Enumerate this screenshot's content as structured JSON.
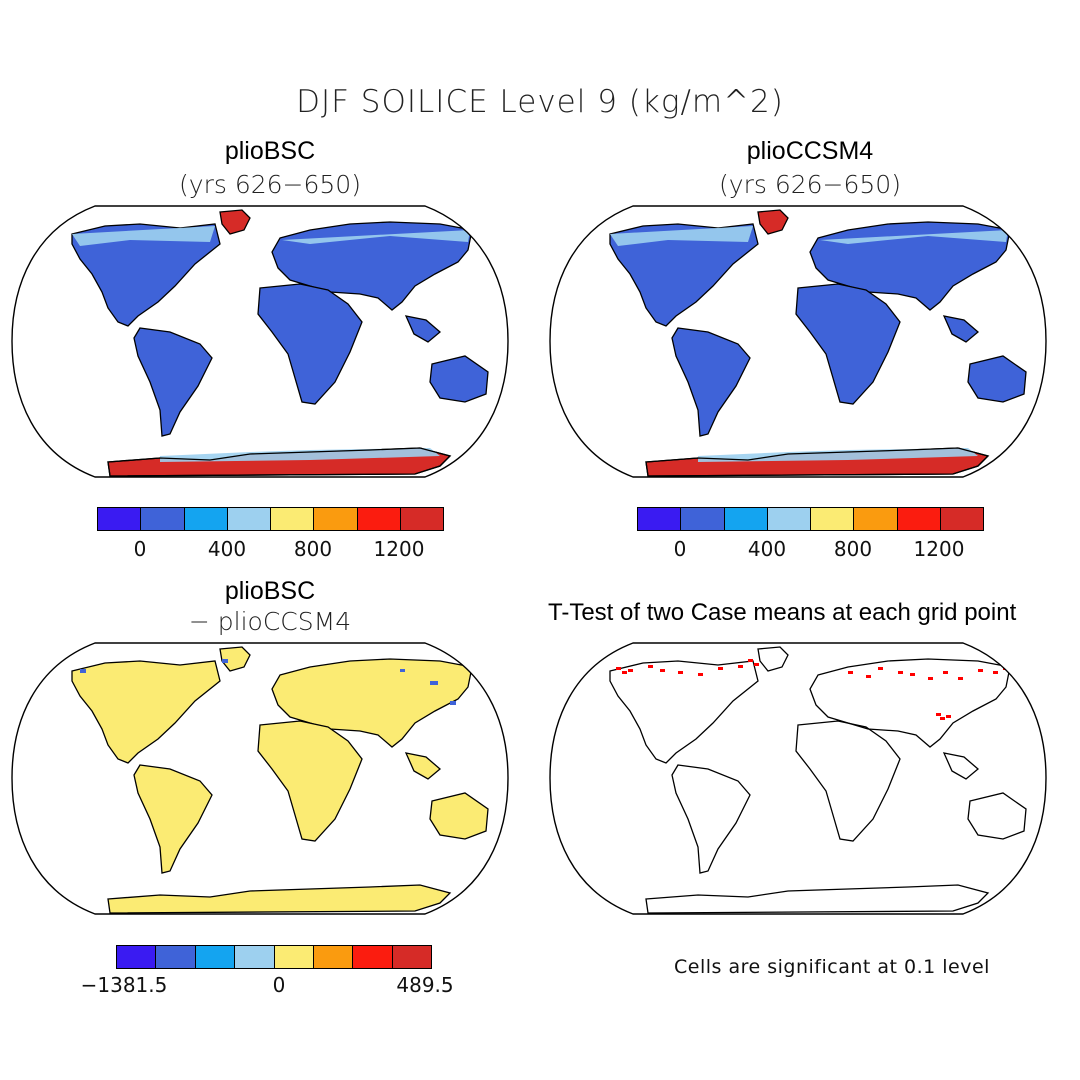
{
  "title": "DJF SOILICE Level 9 (kg/m^2)",
  "panels": {
    "top_left": {
      "title": "plioBSC",
      "subtitle": "(yrs 626−650)"
    },
    "top_right": {
      "title": "plioCCSM4",
      "subtitle": "(yrs 626−650)"
    },
    "bottom_left": {
      "title": "plioBSC",
      "subtitle": "− plioCCSM4"
    },
    "bottom_right": {
      "title": "T-Test of two Case means at each grid point",
      "note": "Cells are significant at 0.1 level"
    }
  },
  "colorbars": {
    "abs": {
      "colors": [
        "#3a1bf2",
        "#3f63d8",
        "#14a4f0",
        "#9dd0ef",
        "#fbeb73",
        "#fa9b0f",
        "#fb1c0f",
        "#d62b27"
      ],
      "ticks": [
        "0",
        "400",
        "800",
        "1200"
      ]
    },
    "diff": {
      "colors": [
        "#3a1bf2",
        "#3f63d8",
        "#14a4f0",
        "#9dd0ef",
        "#fbeb73",
        "#fa9b0f",
        "#fb1c0f",
        "#d62b27"
      ],
      "ticks": [
        "−1381.5",
        "0",
        "489.5"
      ]
    }
  },
  "map_colors": {
    "land_abs": "#3f63d8",
    "highlat": "#9dd0ef",
    "ice": "#d62b27",
    "land_diff": "#fbeb73",
    "signif": "#ff0000"
  }
}
